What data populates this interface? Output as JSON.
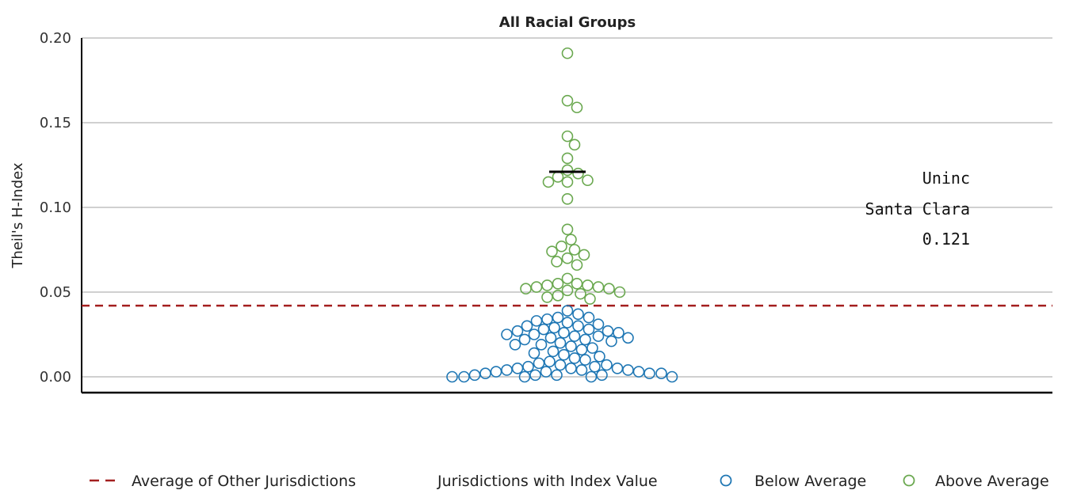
{
  "chart_data": {
    "type": "scatter",
    "title": "All Racial Groups",
    "ylabel": "Theil's H-Index",
    "xlabel": "",
    "ylim": [
      0,
      0.2
    ],
    "yticks": [
      "0.00",
      "0.05",
      "0.10",
      "0.15",
      "0.20"
    ],
    "ytick_values": [
      0,
      0.05,
      0.1,
      0.15,
      0.2
    ],
    "grid": true,
    "average_line": {
      "label": "Average of Other Jurisdictions",
      "value": 0.042,
      "color": "#a31f1f"
    },
    "highlight": {
      "value": 0.121,
      "annotation": [
        "Uninc",
        "Santa Clara",
        "0.121"
      ]
    },
    "legend": {
      "placement": "bottom",
      "group_label": "Jurisdictions with Index Value",
      "below_label": "Below Average",
      "above_label": "Above Average"
    },
    "colors": {
      "below": "#1f77b4",
      "above": "#6aa84f"
    },
    "series": [
      {
        "name": "Above Average",
        "values": [
          0.191,
          0.163,
          0.159,
          0.142,
          0.137,
          0.129,
          0.122,
          0.12,
          0.118,
          0.116,
          0.115,
          0.115,
          0.105,
          0.087,
          0.081,
          0.077,
          0.075,
          0.074,
          0.072,
          0.07,
          0.068,
          0.066,
          0.058,
          0.055,
          0.055,
          0.054,
          0.054,
          0.053,
          0.053,
          0.052,
          0.052,
          0.051,
          0.05,
          0.049,
          0.048,
          0.047,
          0.046
        ]
      },
      {
        "name": "Below Average",
        "values": [
          0.039,
          0.037,
          0.035,
          0.035,
          0.034,
          0.033,
          0.032,
          0.031,
          0.03,
          0.03,
          0.029,
          0.028,
          0.028,
          0.027,
          0.027,
          0.026,
          0.026,
          0.025,
          0.025,
          0.024,
          0.024,
          0.023,
          0.023,
          0.022,
          0.022,
          0.021,
          0.02,
          0.019,
          0.019,
          0.018,
          0.017,
          0.016,
          0.015,
          0.014,
          0.013,
          0.012,
          0.011,
          0.01,
          0.009,
          0.008,
          0.007,
          0.007,
          0.006,
          0.006,
          0.005,
          0.005,
          0.005,
          0.004,
          0.004,
          0.004,
          0.003,
          0.003,
          0.003,
          0.002,
          0.002,
          0.002,
          0.001,
          0.001,
          0.001,
          0.001,
          0.0,
          0.0,
          0.0,
          0.0,
          0.0
        ]
      }
    ]
  }
}
